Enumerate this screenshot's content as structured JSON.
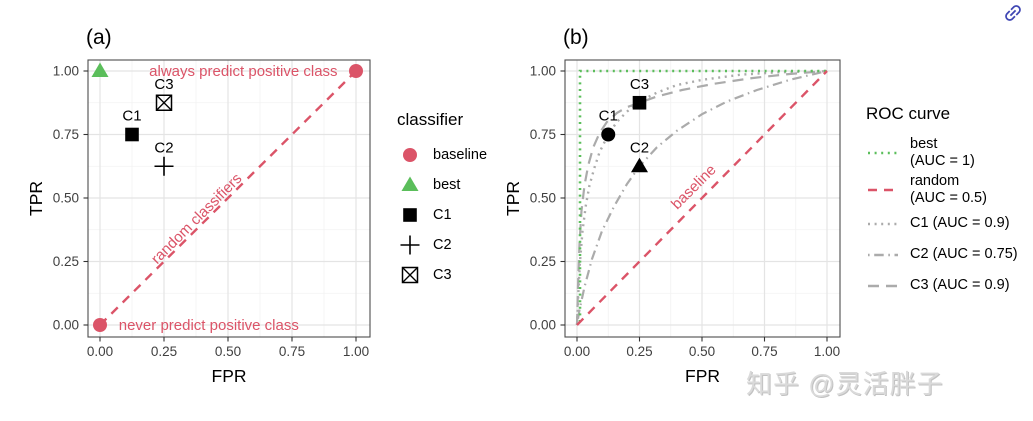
{
  "colors": {
    "red": "#DB5468",
    "green": "#5BBE5B",
    "gray_curve": "#ABABAB",
    "black": "#000000",
    "grid_major": "#E4E4E4",
    "grid_minor": "#F2F2F2",
    "panel_border": "#4D4D4D",
    "tick_text": "#404040",
    "tick_mark": "#333333",
    "link_icon": "#3F46B4",
    "watermark_text": "#DADADA"
  },
  "watermark": {
    "text": "知乎 @灵活胖子"
  },
  "link_icon_name": "link-icon",
  "chart_data": [
    {
      "type": "scatter",
      "title": "(a)",
      "xlabel": "FPR",
      "ylabel": "TPR",
      "xlim": [
        0,
        1
      ],
      "ylim": [
        0,
        1
      ],
      "grid": true,
      "ticks": [
        0,
        0.25,
        0.5,
        0.75,
        1
      ],
      "tick_labels": [
        "0.00",
        "0.25",
        "0.50",
        "0.75",
        "1.00"
      ],
      "minor_ticks": [
        0.125,
        0.375,
        0.625,
        0.875
      ],
      "lines": [
        {
          "name": "random",
          "style": "dashed",
          "color": "red",
          "width": 2.4,
          "points": [
            [
              0,
              0
            ],
            [
              1,
              1
            ]
          ]
        }
      ],
      "points": [
        {
          "name": "baseline",
          "x": 0,
          "y": 0,
          "marker": "circle",
          "color": "red"
        },
        {
          "name": "baseline",
          "x": 1,
          "y": 1,
          "marker": "circle",
          "color": "red"
        },
        {
          "name": "best",
          "x": 0,
          "y": 1,
          "marker": "triangle",
          "color": "green"
        },
        {
          "name": "C1",
          "label": "C1",
          "x": 0.125,
          "y": 0.75,
          "marker": "square",
          "color": "black"
        },
        {
          "name": "C2",
          "label": "C2",
          "x": 0.25,
          "y": 0.625,
          "marker": "plus",
          "color": "black"
        },
        {
          "name": "C3",
          "label": "C3",
          "x": 0.25,
          "y": 0.875,
          "marker": "square-x",
          "color": "black"
        }
      ],
      "annotations": [
        {
          "text": "always predict positive class",
          "x": 0.56,
          "y": 1.0,
          "rotate": 0,
          "color": "red"
        },
        {
          "text": "never predict positive class",
          "x": 0.425,
          "y": 0.0,
          "rotate": 0,
          "color": "red"
        },
        {
          "text": "random classifiers",
          "x": 0.39,
          "y": 0.425,
          "rotate": -45,
          "color": "red"
        }
      ]
    },
    {
      "type": "line",
      "title": "(b)",
      "xlabel": "FPR",
      "ylabel": "TPR",
      "xlim": [
        0,
        1
      ],
      "ylim": [
        0,
        1
      ],
      "grid": true,
      "ticks": [
        0,
        0.25,
        0.5,
        0.75,
        1
      ],
      "tick_labels": [
        "0.00",
        "0.25",
        "0.50",
        "0.75",
        "1.00"
      ],
      "minor_ticks": [
        0.125,
        0.375,
        0.625,
        0.875
      ],
      "lines": [
        {
          "name": "C3 (AUC = 0.9)",
          "style": "longdash",
          "color": "gray_curve",
          "width": 2.2,
          "points": [
            [
              0,
              0
            ],
            [
              0.004,
              0.15
            ],
            [
              0.01,
              0.32
            ],
            [
              0.018,
              0.45
            ],
            [
              0.03,
              0.55
            ],
            [
              0.045,
              0.63
            ],
            [
              0.065,
              0.7
            ],
            [
              0.09,
              0.755
            ],
            [
              0.12,
              0.8
            ],
            [
              0.16,
              0.835
            ],
            [
              0.2,
              0.858
            ],
            [
              0.25,
              0.875
            ],
            [
              0.32,
              0.9
            ],
            [
              0.42,
              0.925
            ],
            [
              0.55,
              0.95
            ],
            [
              0.7,
              0.972
            ],
            [
              0.85,
              0.988
            ],
            [
              1,
              1
            ]
          ]
        },
        {
          "name": "C2 (AUC = 0.75)",
          "style": "dashdot",
          "color": "gray_curve",
          "width": 2.2,
          "points": [
            [
              0,
              0
            ],
            [
              0.01,
              0.06
            ],
            [
              0.03,
              0.15
            ],
            [
              0.06,
              0.26
            ],
            [
              0.1,
              0.37
            ],
            [
              0.15,
              0.47
            ],
            [
              0.2,
              0.555
            ],
            [
              0.25,
              0.625
            ],
            [
              0.32,
              0.7
            ],
            [
              0.4,
              0.765
            ],
            [
              0.5,
              0.83
            ],
            [
              0.6,
              0.88
            ],
            [
              0.72,
              0.925
            ],
            [
              0.85,
              0.965
            ],
            [
              1,
              1
            ]
          ]
        },
        {
          "name": "C1 (AUC = 0.9)",
          "style": "dotted",
          "color": "gray_curve",
          "width": 2.4,
          "points": [
            [
              0,
              0
            ],
            [
              0.005,
              0.12
            ],
            [
              0.012,
              0.25
            ],
            [
              0.022,
              0.37
            ],
            [
              0.035,
              0.47
            ],
            [
              0.05,
              0.55
            ],
            [
              0.07,
              0.62
            ],
            [
              0.09,
              0.68
            ],
            [
              0.11,
              0.72
            ],
            [
              0.125,
              0.75
            ],
            [
              0.16,
              0.8
            ],
            [
              0.2,
              0.84
            ],
            [
              0.25,
              0.88
            ],
            [
              0.32,
              0.915
            ],
            [
              0.4,
              0.945
            ],
            [
              0.5,
              0.965
            ],
            [
              0.65,
              0.985
            ],
            [
              0.8,
              0.995
            ],
            [
              1,
              1
            ]
          ]
        },
        {
          "name": "best (AUC = 1)",
          "style": "dotted",
          "color": "green",
          "width": 2.6,
          "points": [
            [
              0.012,
              0.012
            ],
            [
              0.012,
              1
            ],
            [
              1,
              1
            ]
          ]
        },
        {
          "name": "random (AUC = 0.5)",
          "style": "dashed",
          "color": "red",
          "width": 2.4,
          "points": [
            [
              0,
              0
            ],
            [
              1,
              1
            ]
          ]
        }
      ],
      "points": [
        {
          "name": "C1",
          "label": "C1",
          "x": 0.125,
          "y": 0.75,
          "marker": "circle-filled",
          "color": "black"
        },
        {
          "name": "C2",
          "label": "C2",
          "x": 0.25,
          "y": 0.625,
          "marker": "triangle",
          "color": "black"
        },
        {
          "name": "C3",
          "label": "C3",
          "x": 0.25,
          "y": 0.875,
          "marker": "square",
          "color": "black"
        }
      ],
      "annotations": [
        {
          "text": "baseline",
          "x": 0.48,
          "y": 0.55,
          "rotate": -45,
          "color": "red"
        }
      ]
    }
  ],
  "legends": [
    {
      "title": "classifier",
      "items": [
        {
          "label": "baseline",
          "marker": "circle",
          "color": "red"
        },
        {
          "label": "best",
          "marker": "triangle",
          "color": "green"
        },
        {
          "label": "C1",
          "marker": "square",
          "color": "black"
        },
        {
          "label": "C2",
          "marker": "plus",
          "color": "black"
        },
        {
          "label": "C3",
          "marker": "square-x",
          "color": "black"
        }
      ]
    },
    {
      "title": "ROC curve",
      "items": [
        {
          "label_lines": [
            "best",
            "(AUC = 1)"
          ],
          "style": "dotted",
          "color": "green"
        },
        {
          "label_lines": [
            "random",
            "(AUC = 0.5)"
          ],
          "style": "dashed",
          "color": "red"
        },
        {
          "label_lines": [
            "C1 (AUC = 0.9)"
          ],
          "style": "dotted",
          "color": "gray_curve"
        },
        {
          "label_lines": [
            "C2 (AUC = 0.75)"
          ],
          "style": "dashdot",
          "color": "gray_curve"
        },
        {
          "label_lines": [
            "C3 (AUC = 0.9)"
          ],
          "style": "longdash",
          "color": "gray_curve"
        }
      ]
    }
  ]
}
